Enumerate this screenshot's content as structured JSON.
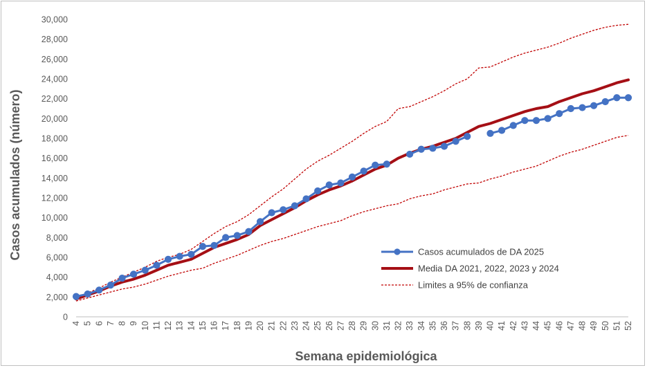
{
  "chart_data": {
    "type": "line",
    "title": "",
    "xlabel": "Semana epidemiológica",
    "ylabel": "Casos acumulados (número)",
    "ylim": [
      0,
      30000
    ],
    "yticks": [
      0,
      2000,
      4000,
      6000,
      8000,
      10000,
      12000,
      14000,
      16000,
      18000,
      20000,
      22000,
      24000,
      26000,
      28000,
      30000
    ],
    "ytick_labels": [
      "0",
      "2,000",
      "4,000",
      "6,000",
      "8,000",
      "10,000",
      "12,000",
      "14,000",
      "16,000",
      "18,000",
      "20,000",
      "22,000",
      "24,000",
      "26,000",
      "28,000",
      "30,000"
    ],
    "x": [
      4,
      5,
      6,
      7,
      8,
      9,
      10,
      11,
      12,
      13,
      14,
      15,
      16,
      17,
      18,
      19,
      20,
      21,
      22,
      23,
      24,
      25,
      26,
      27,
      28,
      29,
      30,
      31,
      32,
      33,
      34,
      35,
      36,
      37,
      38,
      39,
      40,
      41,
      42,
      43,
      44,
      45,
      46,
      47,
      48,
      49,
      50,
      51,
      52
    ],
    "grid": false,
    "legend_position": "lower-right",
    "series": [
      {
        "name": "Casos acumulados de DA 2025",
        "color": "#4472c4",
        "style": "line-markers",
        "values": [
          2050,
          2300,
          2700,
          3200,
          3900,
          4300,
          4700,
          5200,
          5800,
          6100,
          6300,
          7100,
          7200,
          8000,
          8200,
          8600,
          9600,
          10500,
          10800,
          11200,
          11900,
          12700,
          13300,
          13500,
          14100,
          14700,
          15300,
          15400,
          null,
          16400,
          16900,
          17000,
          17200,
          17700,
          18200,
          null,
          18500,
          18800,
          19300,
          19800,
          19800,
          20000,
          20500,
          21000,
          21100,
          21300,
          21700,
          22100,
          22100
        ]
      },
      {
        "name": "Media DA 2021, 2022, 2023 y 2024",
        "color": "#a50f15",
        "style": "thick-line",
        "values": [
          1800,
          2200,
          2600,
          3100,
          3500,
          3800,
          4200,
          4700,
          5200,
          5500,
          5800,
          6400,
          7000,
          7400,
          7800,
          8300,
          9200,
          9800,
          10400,
          11000,
          11700,
          12300,
          12800,
          13200,
          13700,
          14300,
          14900,
          15300,
          16000,
          16500,
          16900,
          17200,
          17600,
          18000,
          18600,
          19200,
          19500,
          19900,
          20300,
          20700,
          21000,
          21200,
          21700,
          22100,
          22500,
          22800,
          23200,
          23600,
          23900
        ]
      },
      {
        "name": "Limites a 95% de confianza",
        "color": "#c00000",
        "style": "dashed",
        "values": [
          2000,
          2400,
          2900,
          3500,
          4000,
          4500,
          5000,
          5600,
          6000,
          6300,
          6800,
          7600,
          8400,
          9100,
          9600,
          10300,
          11200,
          12100,
          12900,
          13900,
          14900,
          15700,
          16300,
          17000,
          17700,
          18500,
          19200,
          19700,
          21000,
          21200,
          21700,
          22200,
          22800,
          23500,
          24000,
          25100,
          25200,
          25700,
          26200,
          26600,
          26900,
          27200,
          27600,
          28100,
          28500,
          28900,
          29200,
          29400,
          29500
        ]
      },
      {
        "name": "",
        "color": "#c00000",
        "style": "dashed",
        "legend": false,
        "values": [
          1600,
          1900,
          2200,
          2500,
          2800,
          3000,
          3300,
          3700,
          4100,
          4400,
          4700,
          4900,
          5400,
          5800,
          6200,
          6700,
          7200,
          7600,
          7900,
          8300,
          8700,
          9100,
          9400,
          9700,
          10200,
          10600,
          10900,
          11200,
          11400,
          11900,
          12200,
          12400,
          12800,
          13100,
          13400,
          13500,
          13900,
          14200,
          14600,
          14900,
          15200,
          15700,
          16200,
          16600,
          16900,
          17300,
          17700,
          18100,
          18300
        ]
      }
    ]
  }
}
